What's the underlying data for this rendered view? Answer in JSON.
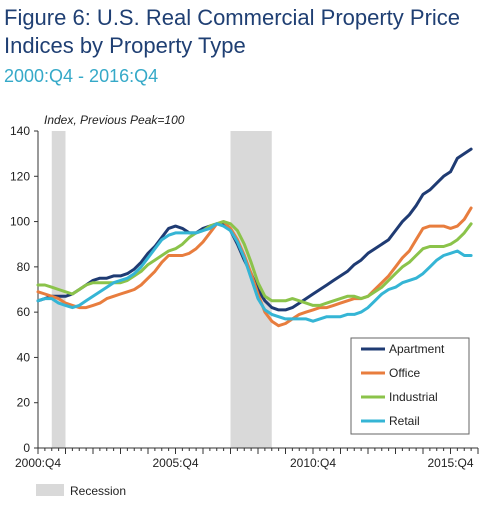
{
  "figure": {
    "title": "Figure 6:  U.S. Real Commercial Property Price Indices by Property Type",
    "subtitle": "2000:Q4 - 2016:Q4"
  },
  "colors": {
    "recession": "#d9d9d9",
    "axis": "#333333"
  },
  "chart_data": {
    "type": "line",
    "title": "Figure 6:  U.S. Real Commercial Property Price Indices by Property Type",
    "subtitle": "2000:Q4 - 2016:Q4",
    "ylabel": "Index, Previous Peak=100",
    "xlabel": "",
    "ylim": [
      0,
      140
    ],
    "yticks": [
      0,
      20,
      40,
      60,
      80,
      100,
      120,
      140
    ],
    "xlim": [
      2000.75,
      2016.75
    ],
    "xticks": [
      {
        "value": 2000.75,
        "label": "2000:Q4"
      },
      {
        "value": 2005.75,
        "label": "2005:Q4"
      },
      {
        "value": 2010.75,
        "label": "2010:Q4"
      },
      {
        "value": 2015.75,
        "label": "2015:Q4"
      }
    ],
    "legend_position": "bottom-right",
    "grid": false,
    "recession_label": "Recession",
    "recessions": [
      [
        2001.25,
        2001.75
      ],
      [
        2007.75,
        2009.25
      ]
    ],
    "series": [
      {
        "name": "Apartment",
        "color": "#1f3b73",
        "points": [
          [
            2000.75,
            65
          ],
          [
            2001.0,
            66
          ],
          [
            2001.25,
            67
          ],
          [
            2001.5,
            67
          ],
          [
            2001.75,
            67
          ],
          [
            2002.0,
            68
          ],
          [
            2002.25,
            70
          ],
          [
            2002.5,
            72
          ],
          [
            2002.75,
            74
          ],
          [
            2003.0,
            75
          ],
          [
            2003.25,
            75
          ],
          [
            2003.5,
            76
          ],
          [
            2003.75,
            76
          ],
          [
            2004.0,
            77
          ],
          [
            2004.25,
            79
          ],
          [
            2004.5,
            82
          ],
          [
            2004.75,
            86
          ],
          [
            2005.0,
            89
          ],
          [
            2005.25,
            93
          ],
          [
            2005.5,
            97
          ],
          [
            2005.75,
            98
          ],
          [
            2006.0,
            97
          ],
          [
            2006.25,
            95
          ],
          [
            2006.5,
            95
          ],
          [
            2006.75,
            97
          ],
          [
            2007.0,
            98
          ],
          [
            2007.25,
            99
          ],
          [
            2007.5,
            99
          ],
          [
            2007.75,
            96
          ],
          [
            2008.0,
            90
          ],
          [
            2008.25,
            83
          ],
          [
            2008.5,
            77
          ],
          [
            2008.75,
            70
          ],
          [
            2009.0,
            65
          ],
          [
            2009.25,
            62
          ],
          [
            2009.5,
            61
          ],
          [
            2009.75,
            61
          ],
          [
            2010.0,
            62
          ],
          [
            2010.25,
            64
          ],
          [
            2010.5,
            66
          ],
          [
            2010.75,
            68
          ],
          [
            2011.0,
            70
          ],
          [
            2011.25,
            72
          ],
          [
            2011.5,
            74
          ],
          [
            2011.75,
            76
          ],
          [
            2012.0,
            78
          ],
          [
            2012.25,
            81
          ],
          [
            2012.5,
            83
          ],
          [
            2012.75,
            86
          ],
          [
            2013.0,
            88
          ],
          [
            2013.25,
            90
          ],
          [
            2013.5,
            92
          ],
          [
            2013.75,
            96
          ],
          [
            2014.0,
            100
          ],
          [
            2014.25,
            103
          ],
          [
            2014.5,
            107
          ],
          [
            2014.75,
            112
          ],
          [
            2015.0,
            114
          ],
          [
            2015.25,
            117
          ],
          [
            2015.5,
            120
          ],
          [
            2015.75,
            122
          ],
          [
            2016.0,
            128
          ],
          [
            2016.25,
            130
          ],
          [
            2016.5,
            132
          ]
        ]
      },
      {
        "name": "Office",
        "color": "#e87d3e",
        "points": [
          [
            2000.75,
            69
          ],
          [
            2001.0,
            68
          ],
          [
            2001.25,
            67
          ],
          [
            2001.5,
            66
          ],
          [
            2001.75,
            64
          ],
          [
            2002.0,
            63
          ],
          [
            2002.25,
            62
          ],
          [
            2002.5,
            62
          ],
          [
            2002.75,
            63
          ],
          [
            2003.0,
            64
          ],
          [
            2003.25,
            66
          ],
          [
            2003.5,
            67
          ],
          [
            2003.75,
            68
          ],
          [
            2004.0,
            69
          ],
          [
            2004.25,
            70
          ],
          [
            2004.5,
            72
          ],
          [
            2004.75,
            75
          ],
          [
            2005.0,
            78
          ],
          [
            2005.25,
            82
          ],
          [
            2005.5,
            85
          ],
          [
            2005.75,
            85
          ],
          [
            2006.0,
            85
          ],
          [
            2006.25,
            86
          ],
          [
            2006.5,
            88
          ],
          [
            2006.75,
            91
          ],
          [
            2007.0,
            95
          ],
          [
            2007.25,
            99
          ],
          [
            2007.5,
            100
          ],
          [
            2007.75,
            97
          ],
          [
            2008.0,
            92
          ],
          [
            2008.25,
            85
          ],
          [
            2008.5,
            77
          ],
          [
            2008.75,
            68
          ],
          [
            2009.0,
            60
          ],
          [
            2009.25,
            56
          ],
          [
            2009.5,
            54
          ],
          [
            2009.75,
            55
          ],
          [
            2010.0,
            57
          ],
          [
            2010.25,
            59
          ],
          [
            2010.5,
            60
          ],
          [
            2010.75,
            61
          ],
          [
            2011.0,
            62
          ],
          [
            2011.25,
            62
          ],
          [
            2011.5,
            63
          ],
          [
            2011.75,
            64
          ],
          [
            2012.0,
            65
          ],
          [
            2012.25,
            66
          ],
          [
            2012.5,
            66
          ],
          [
            2012.75,
            67
          ],
          [
            2013.0,
            70
          ],
          [
            2013.25,
            73
          ],
          [
            2013.5,
            76
          ],
          [
            2013.75,
            80
          ],
          [
            2014.0,
            84
          ],
          [
            2014.25,
            87
          ],
          [
            2014.5,
            92
          ],
          [
            2014.75,
            97
          ],
          [
            2015.0,
            98
          ],
          [
            2015.25,
            98
          ],
          [
            2015.5,
            98
          ],
          [
            2015.75,
            97
          ],
          [
            2016.0,
            98
          ],
          [
            2016.25,
            101
          ],
          [
            2016.5,
            106
          ]
        ]
      },
      {
        "name": "Industrial",
        "color": "#8bc34a",
        "points": [
          [
            2000.75,
            72
          ],
          [
            2001.0,
            72
          ],
          [
            2001.25,
            71
          ],
          [
            2001.5,
            70
          ],
          [
            2001.75,
            69
          ],
          [
            2002.0,
            68
          ],
          [
            2002.25,
            70
          ],
          [
            2002.5,
            72
          ],
          [
            2002.75,
            73
          ],
          [
            2003.0,
            73
          ],
          [
            2003.25,
            73
          ],
          [
            2003.5,
            73
          ],
          [
            2003.75,
            73
          ],
          [
            2004.0,
            74
          ],
          [
            2004.25,
            76
          ],
          [
            2004.5,
            78
          ],
          [
            2004.75,
            81
          ],
          [
            2005.0,
            83
          ],
          [
            2005.25,
            85
          ],
          [
            2005.5,
            87
          ],
          [
            2005.75,
            88
          ],
          [
            2006.0,
            90
          ],
          [
            2006.25,
            93
          ],
          [
            2006.5,
            95
          ],
          [
            2006.75,
            96
          ],
          [
            2007.0,
            98
          ],
          [
            2007.25,
            99
          ],
          [
            2007.5,
            100
          ],
          [
            2007.75,
            99
          ],
          [
            2008.0,
            96
          ],
          [
            2008.25,
            90
          ],
          [
            2008.5,
            82
          ],
          [
            2008.75,
            73
          ],
          [
            2009.0,
            67
          ],
          [
            2009.25,
            65
          ],
          [
            2009.5,
            65
          ],
          [
            2009.75,
            65
          ],
          [
            2010.0,
            66
          ],
          [
            2010.25,
            65
          ],
          [
            2010.5,
            64
          ],
          [
            2010.75,
            63
          ],
          [
            2011.0,
            63
          ],
          [
            2011.25,
            64
          ],
          [
            2011.5,
            65
          ],
          [
            2011.75,
            66
          ],
          [
            2012.0,
            67
          ],
          [
            2012.25,
            67
          ],
          [
            2012.5,
            66
          ],
          [
            2012.75,
            67
          ],
          [
            2013.0,
            69
          ],
          [
            2013.25,
            71
          ],
          [
            2013.5,
            74
          ],
          [
            2013.75,
            77
          ],
          [
            2014.0,
            80
          ],
          [
            2014.25,
            82
          ],
          [
            2014.5,
            85
          ],
          [
            2014.75,
            88
          ],
          [
            2015.0,
            89
          ],
          [
            2015.25,
            89
          ],
          [
            2015.5,
            89
          ],
          [
            2015.75,
            90
          ],
          [
            2016.0,
            92
          ],
          [
            2016.25,
            95
          ],
          [
            2016.5,
            99
          ]
        ]
      },
      {
        "name": "Retail",
        "color": "#35b5d5",
        "points": [
          [
            2000.75,
            65
          ],
          [
            2001.0,
            66
          ],
          [
            2001.25,
            66
          ],
          [
            2001.5,
            64
          ],
          [
            2001.75,
            63
          ],
          [
            2002.0,
            62
          ],
          [
            2002.25,
            63
          ],
          [
            2002.5,
            65
          ],
          [
            2002.75,
            67
          ],
          [
            2003.0,
            69
          ],
          [
            2003.25,
            71
          ],
          [
            2003.5,
            73
          ],
          [
            2003.75,
            74
          ],
          [
            2004.0,
            75
          ],
          [
            2004.25,
            77
          ],
          [
            2004.5,
            80
          ],
          [
            2004.75,
            84
          ],
          [
            2005.0,
            88
          ],
          [
            2005.25,
            92
          ],
          [
            2005.5,
            94
          ],
          [
            2005.75,
            95
          ],
          [
            2006.0,
            95
          ],
          [
            2006.25,
            95
          ],
          [
            2006.5,
            95
          ],
          [
            2006.75,
            96
          ],
          [
            2007.0,
            97
          ],
          [
            2007.25,
            99
          ],
          [
            2007.5,
            98
          ],
          [
            2007.75,
            96
          ],
          [
            2008.0,
            91
          ],
          [
            2008.25,
            84
          ],
          [
            2008.5,
            75
          ],
          [
            2008.75,
            66
          ],
          [
            2009.0,
            61
          ],
          [
            2009.25,
            59
          ],
          [
            2009.5,
            58
          ],
          [
            2009.75,
            57
          ],
          [
            2010.0,
            57
          ],
          [
            2010.25,
            57
          ],
          [
            2010.5,
            57
          ],
          [
            2010.75,
            56
          ],
          [
            2011.0,
            57
          ],
          [
            2011.25,
            58
          ],
          [
            2011.5,
            58
          ],
          [
            2011.75,
            58
          ],
          [
            2012.0,
            59
          ],
          [
            2012.25,
            59
          ],
          [
            2012.5,
            60
          ],
          [
            2012.75,
            62
          ],
          [
            2013.0,
            65
          ],
          [
            2013.25,
            68
          ],
          [
            2013.5,
            70
          ],
          [
            2013.75,
            71
          ],
          [
            2014.0,
            73
          ],
          [
            2014.25,
            74
          ],
          [
            2014.5,
            75
          ],
          [
            2014.75,
            77
          ],
          [
            2015.0,
            80
          ],
          [
            2015.25,
            83
          ],
          [
            2015.5,
            85
          ],
          [
            2015.75,
            86
          ],
          [
            2016.0,
            87
          ],
          [
            2016.25,
            85
          ],
          [
            2016.5,
            85
          ]
        ]
      }
    ]
  }
}
